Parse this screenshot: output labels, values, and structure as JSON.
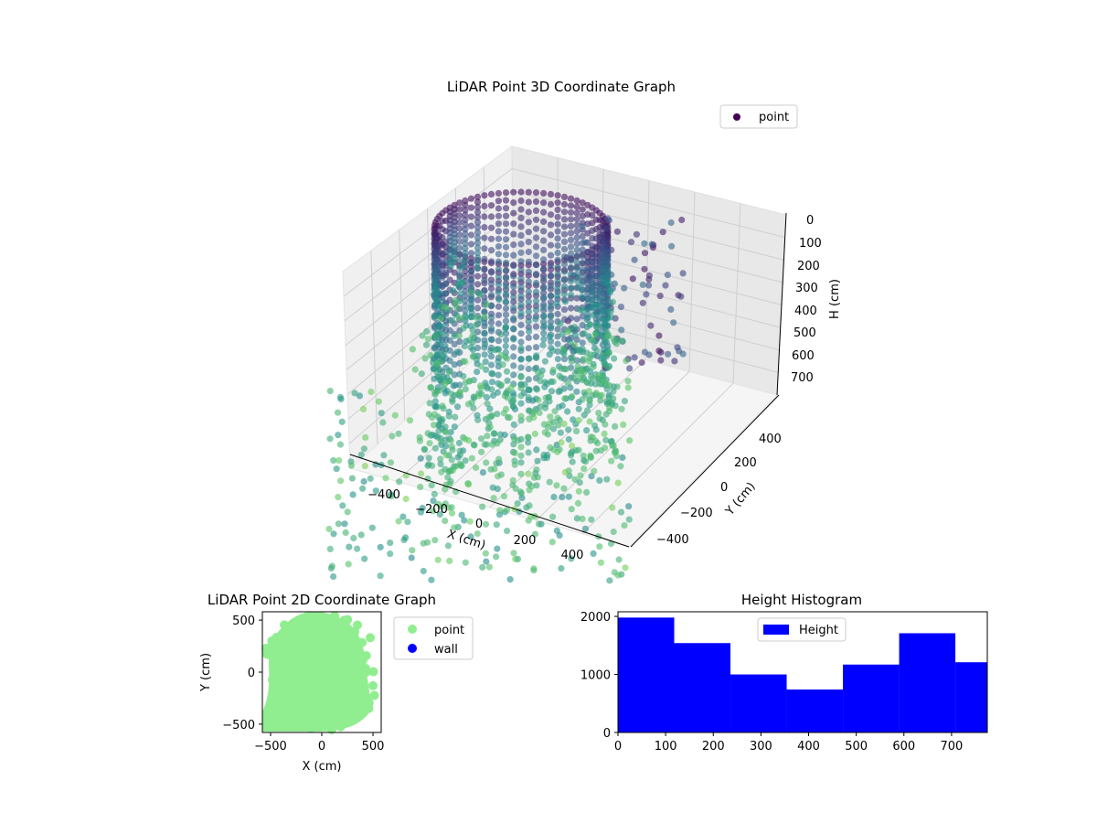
{
  "colors": {
    "point_2d": "#90ee90",
    "wall": "#0000ff",
    "histogram": "#0000ff",
    "pane": "#f2f2f2",
    "grid": "#d0d0d0",
    "viridis_dark": "#440154",
    "viridis_mid": "#21918c",
    "viridis_light": "#5ec962"
  },
  "chart_data": [
    {
      "type": "scatter",
      "title": "LiDAR Point 3D Coordinate Graph",
      "xlabel": "X (cm)",
      "ylabel": "Y (cm)",
      "zlabel": "H (cm)",
      "x_ticks": [
        "−400",
        "−200",
        "0",
        "200",
        "400"
      ],
      "y_ticks": [
        "−400",
        "−200",
        "0",
        "200",
        "400"
      ],
      "z_ticks": [
        "0",
        "100",
        "200",
        "300",
        "400",
        "500",
        "600",
        "700"
      ],
      "zlim": [
        0,
        750
      ],
      "z_inverted": true,
      "grid": true,
      "legend": {
        "position": "top-right",
        "entries": [
          "point"
        ]
      },
      "colormap": "viridis"
    },
    {
      "type": "scatter",
      "title": "LiDAR Point 2D Coordinate Graph",
      "xlabel": "X (cm)",
      "ylabel": "Y (cm)",
      "x_ticks": [
        "−500",
        "0",
        "500"
      ],
      "y_ticks": [
        "500",
        "0",
        "−500"
      ],
      "xlim": [
        -580,
        580
      ],
      "ylim": [
        -580,
        580
      ],
      "series": [
        {
          "name": "point",
          "color": "#90ee90"
        },
        {
          "name": "wall",
          "color": "#0000ff",
          "values": []
        }
      ],
      "legend": {
        "position": "outside-right",
        "entries": [
          "point",
          "wall"
        ]
      }
    },
    {
      "type": "bar",
      "title": "Height Histogram",
      "xlabel": "",
      "ylabel": "",
      "bins": [
        0,
        118,
        236,
        354,
        472,
        590,
        708,
        775
      ],
      "counts": [
        1980,
        1540,
        1000,
        740,
        1170,
        1710,
        1210
      ],
      "x_ticks": [
        "0",
        "100",
        "200",
        "300",
        "400",
        "500",
        "600",
        "700"
      ],
      "y_ticks": [
        "0",
        "1000",
        "2000"
      ],
      "xlim": [
        0,
        775
      ],
      "ylim": [
        0,
        2080
      ],
      "legend": {
        "position": "top-center",
        "entries": [
          "Height"
        ]
      }
    }
  ]
}
